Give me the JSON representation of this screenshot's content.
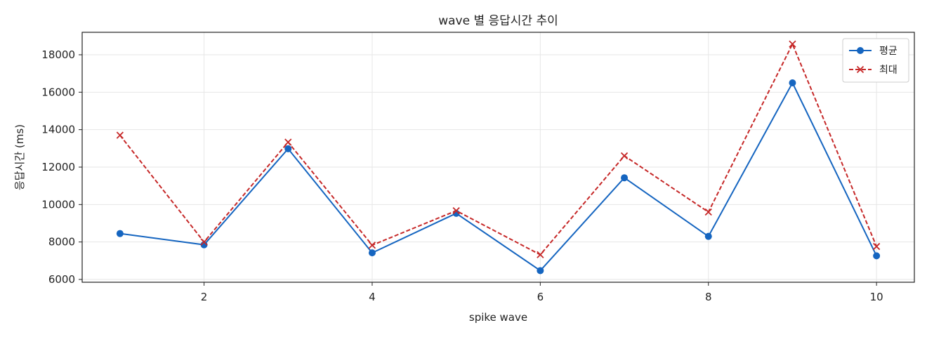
{
  "chart_data": {
    "type": "line",
    "title": "wave 별 응답시간 추이",
    "xlabel": "spike wave",
    "ylabel": "응답시간 (ms)",
    "x": [
      1,
      2,
      3,
      4,
      5,
      6,
      7,
      8,
      9,
      10
    ],
    "xlim": [
      0.55,
      10.45
    ],
    "ylim": [
      5850,
      19200
    ],
    "xticks": [
      2,
      4,
      6,
      8,
      10
    ],
    "yticks": [
      6000,
      8000,
      10000,
      12000,
      14000,
      16000,
      18000
    ],
    "grid": true,
    "legend_position": "top-right",
    "series": [
      {
        "name": "평균",
        "color": "#1565c0",
        "line_style": "solid",
        "marker": "circle",
        "values": [
          8450,
          7850,
          12980,
          7420,
          9530,
          6470,
          11430,
          8300,
          16500,
          7260
        ]
      },
      {
        "name": "최대",
        "color": "#c62828",
        "line_style": "dashed",
        "marker": "x",
        "values": [
          13700,
          8000,
          13330,
          7830,
          9670,
          7320,
          12600,
          9600,
          18570,
          7760
        ]
      }
    ]
  }
}
